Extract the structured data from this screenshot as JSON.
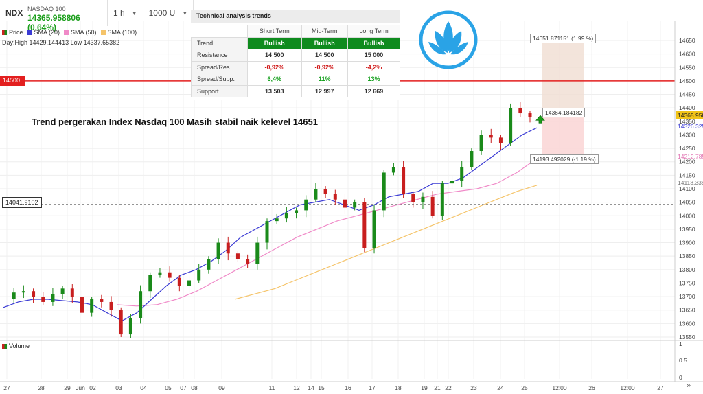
{
  "toolbar": {
    "symbol": "NDX",
    "name": "NASDAQ 100",
    "price_line": "14365.958806 (0.64%)",
    "interval": "1 h",
    "bars": "1000 U"
  },
  "legend": [
    {
      "label": "Price",
      "color": "#cc2222"
    },
    {
      "label": "SMA (20)",
      "color": "#3a3ad4"
    },
    {
      "label": "SMA (50)",
      "color": "#f08ac8"
    },
    {
      "label": "SMA (100)",
      "color": "#f5c46a"
    }
  ],
  "day_info": "Day:High 14429.144413 Low 14337.65382",
  "ta": {
    "title": "Technical analysis trends",
    "columns": [
      "Short Term",
      "Mid-Term",
      "Long Term"
    ],
    "rows": [
      {
        "label": "Trend",
        "values": [
          "Bullish",
          "Bullish",
          "Bullish"
        ],
        "kind": "bull"
      },
      {
        "label": "Resistance",
        "values": [
          "14 500",
          "14 500",
          "15 000"
        ],
        "kind": "val"
      },
      {
        "label": "Spread/Res.",
        "values": [
          "-0,92%",
          "-0,92%",
          "-4,2%"
        ],
        "kind": "neg"
      },
      {
        "label": "Spread/Supp.",
        "values": [
          "6,4%",
          "11%",
          "13%"
        ],
        "kind": "pos"
      },
      {
        "label": "Support",
        "values": [
          "13 503",
          "12 997",
          "12 669"
        ],
        "kind": "val"
      }
    ]
  },
  "annotation": "Trend pergerakan Index Nasdaq 100 Masih stabil naik kelevel 14651",
  "levels": {
    "resistance_tag": "14500",
    "support_tag": "14041.9102",
    "target_top": "14651.871151 (1.99 %)",
    "entry": "14364.184182",
    "target_bottom": "14193.492029 (-1.19 %)"
  },
  "price_tags": {
    "last": "14365.958",
    "sma20": "14326.325",
    "sma50": "14212.785",
    "sma100": "14113.338"
  },
  "volume": {
    "label": "Volume",
    "ticks": [
      "1",
      "0.5",
      "0"
    ]
  },
  "colors": {
    "up": "#1a8a1a",
    "down": "#c81e1e",
    "resistance": "#e31f1f",
    "sma20": "#3a3ad4",
    "sma50": "#f08ac8",
    "sma100": "#f5c46a",
    "logo": "#2aa3e6"
  },
  "chart_data": {
    "type": "line",
    "title": "",
    "ylim": [
      13540,
      14690
    ],
    "y_ticks": [
      13550,
      13600,
      13650,
      13700,
      13750,
      13800,
      13850,
      13900,
      13950,
      14000,
      14050,
      14100,
      14150,
      14200,
      14250,
      14300,
      14350,
      14400,
      14450,
      14500,
      14550,
      14600,
      14650
    ],
    "x_labels": [
      "27",
      "28",
      "29",
      "Jun",
      "02",
      "03",
      "04",
      "05",
      "07",
      "08",
      "09",
      "11",
      "12",
      "14",
      "15",
      "16",
      "17",
      "18",
      "19",
      "21",
      "22",
      "23",
      "24",
      "25",
      "12:00",
      "26",
      "12:00",
      "27"
    ],
    "horizontal_lines": [
      14500,
      14041.9102
    ],
    "series": [
      {
        "name": "Price",
        "values": [
          13690,
          13715,
          13720,
          13700,
          13680,
          13710,
          13730,
          13700,
          13640,
          13690,
          13680,
          13650,
          13560,
          13620,
          13720,
          13780,
          13790,
          13770,
          13740,
          13760,
          13800,
          13840,
          13900,
          13860,
          13840,
          13820,
          13900,
          13980,
          13990,
          14010,
          14020,
          14060,
          14100,
          14080,
          14060,
          14030,
          14050,
          13880,
          14020,
          14160,
          14180,
          14080,
          14050,
          14070,
          14000,
          14120,
          14130,
          14180,
          14240,
          14300,
          14290,
          14270,
          14400,
          14380,
          14366
        ]
      },
      {
        "name": "SMA (20)",
        "values": [
          13660,
          13680,
          13690,
          13690,
          13685,
          13680,
          13670,
          13640,
          13610,
          13640,
          13690,
          13740,
          13780,
          13800,
          13830,
          13870,
          13920,
          13950,
          13980,
          14010,
          14040,
          14050,
          14060,
          14040,
          14020,
          14040,
          14070,
          14080,
          14090,
          14120,
          14120,
          14140,
          14180,
          14220,
          14260,
          14300,
          14326
        ]
      },
      {
        "name": "SMA (50)",
        "values": [
          13670,
          13665,
          13670,
          13690,
          13720,
          13760,
          13800,
          13840,
          13880,
          13920,
          13950,
          13980,
          14000,
          14020,
          14040,
          14060,
          14080,
          14090,
          14100,
          14120,
          14160,
          14212
        ]
      },
      {
        "name": "SMA (100)",
        "values": [
          13690,
          13710,
          13730,
          13760,
          13790,
          13820,
          13850,
          13880,
          13910,
          13940,
          13970,
          14000,
          14030,
          14060,
          14090,
          14113
        ]
      }
    ]
  }
}
